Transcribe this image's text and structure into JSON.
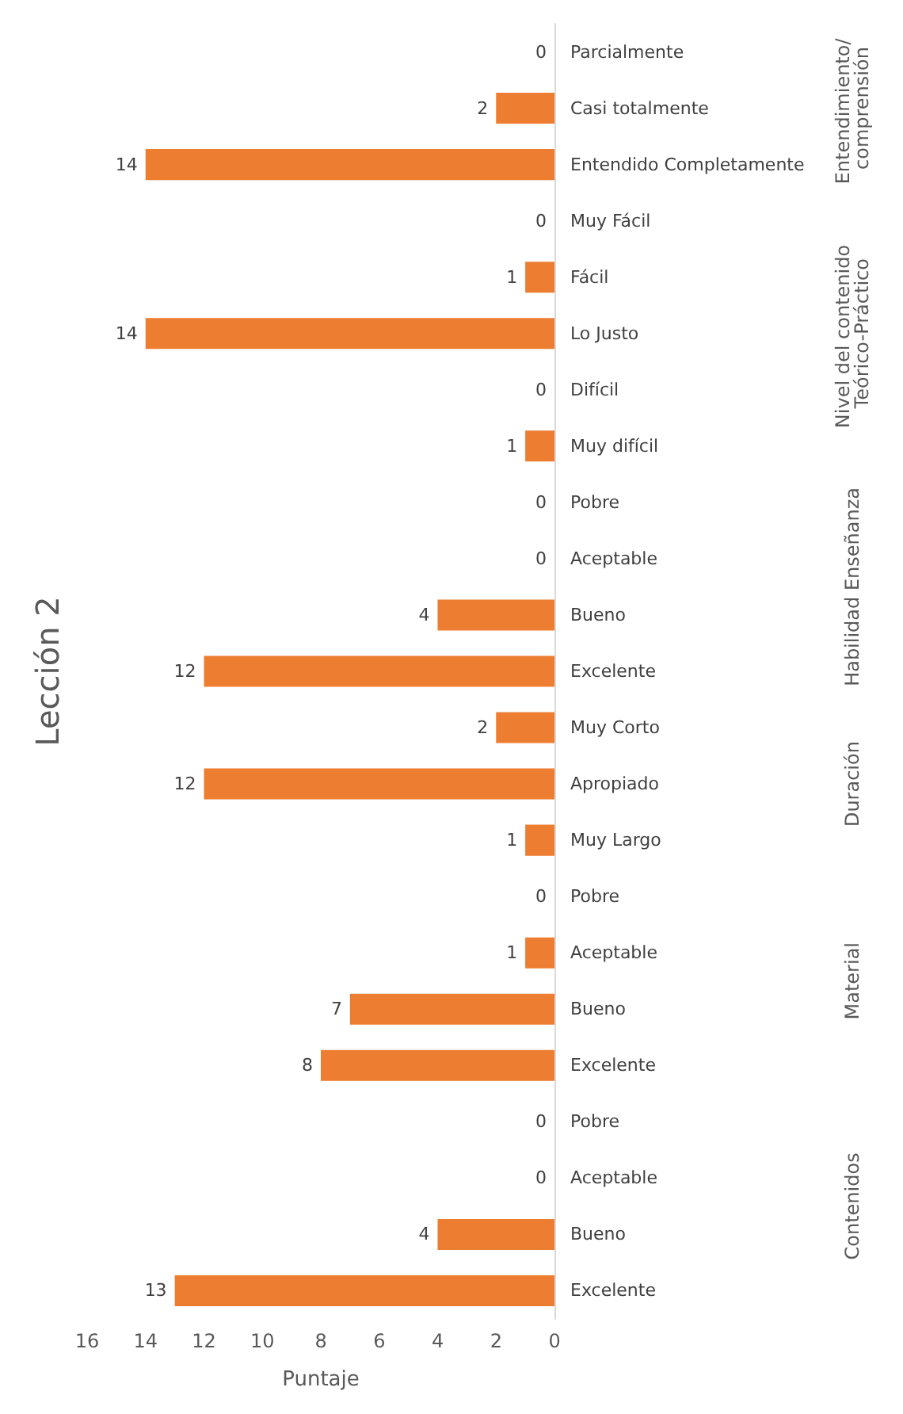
{
  "chart_data": {
    "type": "bar",
    "orientation": "horizontal",
    "title": "Lección 2",
    "xlabel": "Puntaje",
    "categories": [
      "Parcialmente",
      "Casi totalmente",
      "Entendido Completamente",
      "Muy Fácil",
      "Fácil",
      "Lo Justo",
      "Difícil",
      "Muy difícil",
      "Pobre",
      "Aceptable",
      "Bueno",
      "Excelente",
      "Muy Corto",
      "Apropiado",
      "Muy Largo",
      "Pobre",
      "Aceptable",
      "Bueno",
      "Excelente",
      "Pobre",
      "Aceptable",
      "Bueno",
      "Excelente"
    ],
    "series": [
      {
        "name": "Entendimiento/ comprensión",
        "color": "#ed7d31",
        "values": [
          0,
          2,
          14,
          null,
          null,
          null,
          null,
          null,
          null,
          null,
          null,
          null,
          null,
          null,
          null,
          null,
          null,
          null,
          null,
          null,
          null,
          null,
          null
        ]
      },
      {
        "name": "Nivel del contenido Teórico-Práctico",
        "color": "#ed7d31",
        "values": [
          null,
          null,
          null,
          0,
          1,
          14,
          0,
          1,
          null,
          null,
          null,
          null,
          null,
          null,
          null,
          null,
          null,
          null,
          null,
          null,
          null,
          null,
          null
        ]
      },
      {
        "name": "Habilidad Enseñanza",
        "color": "#ed7d31",
        "values": [
          null,
          null,
          null,
          null,
          null,
          null,
          null,
          null,
          0,
          0,
          4,
          12,
          null,
          null,
          null,
          null,
          null,
          null,
          null,
          null,
          null,
          null,
          null
        ]
      },
      {
        "name": "Duración",
        "color": "#ed7d31",
        "values": [
          null,
          null,
          null,
          null,
          null,
          null,
          null,
          null,
          null,
          null,
          null,
          null,
          2,
          12,
          1,
          null,
          null,
          null,
          null,
          null,
          null,
          null,
          null
        ]
      },
      {
        "name": "Material",
        "color": "#ed7d31",
        "values": [
          null,
          null,
          null,
          null,
          null,
          null,
          null,
          null,
          null,
          null,
          null,
          null,
          null,
          null,
          null,
          0,
          1,
          7,
          8,
          null,
          null,
          null,
          null
        ]
      },
      {
        "name": "Contenidos",
        "color": "#ed7d31",
        "values": [
          null,
          null,
          null,
          null,
          null,
          null,
          null,
          null,
          null,
          null,
          null,
          null,
          null,
          null,
          null,
          null,
          null,
          null,
          null,
          0,
          0,
          4,
          13
        ]
      }
    ],
    "xlim": [
      16,
      0
    ],
    "xticks": [
      0,
      2,
      4,
      6,
      8,
      10,
      12,
      14,
      16
    ],
    "data_labels": true,
    "legend": false,
    "grid": false
  }
}
